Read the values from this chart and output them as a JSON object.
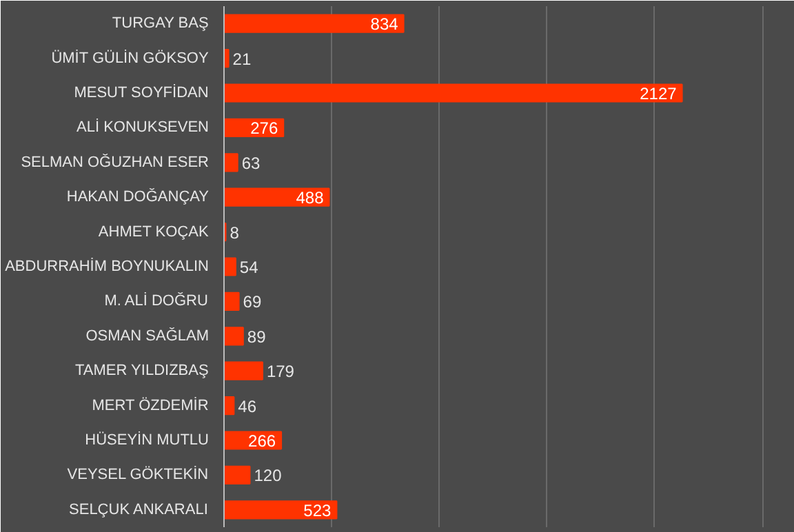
{
  "chart_data": {
    "type": "bar",
    "orientation": "horizontal",
    "categories": [
      "TURGAY BAŞ",
      "ÜMİT GÜLİN GÖKSOY",
      "MESUT SOYFİDAN",
      "ALİ KONUKSEVEN",
      "SELMAN OĞUZHAN ESER",
      "HAKAN DOĞANÇAY",
      "AHMET KOÇAK",
      "ABDURRAHİM BOYNUKALIN",
      "M. ALİ DOĞRU",
      "OSMAN SAĞLAM",
      "TAMER YILDIZBAŞ",
      "MERT ÖZDEMİR",
      "HÜSEYİN MUTLU",
      "VEYSEL GÖKTEKİN",
      "SELÇUK ANKARALI"
    ],
    "values": [
      834,
      21,
      2127,
      276,
      63,
      488,
      8,
      54,
      69,
      89,
      179,
      46,
      266,
      120,
      523
    ],
    "color": "#ff3300",
    "xlim": [
      0,
      2650
    ],
    "xticks": [
      {
        "value": 0,
        "label": null
      },
      {
        "value": 500,
        "label": null
      },
      {
        "value": 1000,
        "label": null
      },
      {
        "value": 1500,
        "label": null
      },
      {
        "value": 2000,
        "label": null
      },
      {
        "value": 2500,
        "label": null
      }
    ],
    "grid": "x",
    "tick_labels": "y",
    "data_labels": true
  }
}
